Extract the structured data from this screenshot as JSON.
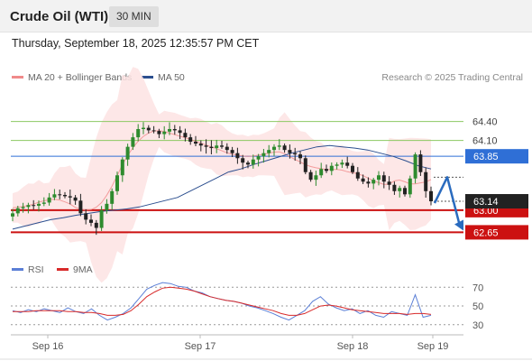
{
  "header": {
    "title": "Crude Oil (WTI)",
    "timeframe": "30 MIN"
  },
  "datetime": "Thursday, September 18, 2025 12:35:57 PM CET",
  "legend": {
    "ma20_label": "MA 20 + Bollinger Bands",
    "ma20_color": "#f08a8a",
    "ma50_label": "MA 50",
    "ma50_color": "#2c4f8f"
  },
  "credit": "Research © 2025 Trading Central",
  "rsi_legend": {
    "rsi_label": "RSI",
    "rsi_color": "#5b7fd6",
    "ma_label": "9MA",
    "ma_color": "#d82a2a"
  },
  "colors": {
    "up_candle": "#2e8b2e",
    "down_candle": "#222222",
    "resistance_green": "#8cc862",
    "pivot_blue": "#2f6fd6",
    "support_red": "#cc1111",
    "bollinger_fill": "#fde3e3",
    "last_price_tag": "#222222",
    "arrow": "#2a6bbf"
  },
  "chart_data": [
    {
      "type": "candlestick",
      "title": "Crude Oil (WTI)",
      "timeframe": "30 MIN",
      "x_tick_labels": [
        "Sep 16",
        "Sep 17",
        "Sep 18",
        "Sep 19"
      ],
      "ylim": [
        62.3,
        64.75
      ],
      "last_price": 63.14,
      "levels": [
        {
          "value": 64.4,
          "label": "64.40",
          "kind": "resistance"
        },
        {
          "value": 64.1,
          "label": "64.10",
          "kind": "resistance"
        },
        {
          "value": 63.85,
          "label": "63.85",
          "kind": "pivot"
        },
        {
          "value": 63.0,
          "label": "63.00",
          "kind": "support"
        },
        {
          "value": 62.65,
          "label": "62.65",
          "kind": "support"
        }
      ],
      "last_price_label": "63.14",
      "close_path": [
        62.95,
        63.03,
        63.05,
        63.08,
        63.07,
        63.1,
        63.12,
        63.2,
        63.25,
        63.24,
        63.22,
        63.2,
        63.15,
        62.95,
        62.85,
        62.8,
        62.72,
        63.0,
        63.1,
        63.3,
        63.55,
        63.8,
        64.0,
        64.15,
        64.28,
        64.3,
        64.26,
        64.25,
        64.2,
        64.24,
        64.28,
        64.26,
        64.22,
        64.15,
        64.08,
        64.05,
        64.02,
        64.0,
        63.98,
        64.02,
        64.0,
        63.95,
        63.9,
        63.82,
        63.75,
        63.72,
        63.8,
        63.85,
        63.9,
        63.95,
        64.0,
        64.02,
        63.95,
        63.9,
        63.88,
        63.82,
        63.6,
        63.48,
        63.55,
        63.65,
        63.62,
        63.7,
        63.72,
        63.75,
        63.7,
        63.6,
        63.5,
        63.45,
        63.42,
        63.48,
        63.55,
        63.45,
        63.4,
        63.3,
        63.35,
        63.25,
        63.5,
        63.88,
        63.6,
        63.3,
        63.14
      ],
      "series": [
        {
          "name": "MA 50",
          "values": [
            62.7,
            62.75,
            62.8,
            62.85,
            62.88,
            62.92,
            62.95,
            62.98,
            63.0,
            63.02,
            63.05,
            63.1,
            63.15,
            63.2,
            63.3,
            63.4,
            63.5,
            63.6,
            63.65,
            63.72,
            63.78,
            63.84,
            63.9,
            63.95,
            64.0,
            64.02,
            64.0,
            63.98,
            63.95,
            63.9,
            63.85,
            63.78,
            63.7,
            63.65
          ]
        }
      ]
    },
    {
      "type": "line",
      "title": "RSI",
      "yticks": [
        30,
        50,
        70
      ],
      "ylim": [
        25,
        78
      ],
      "series": [
        {
          "name": "RSI",
          "values": [
            45,
            43,
            46,
            44,
            47,
            45,
            43,
            48,
            44,
            42,
            47,
            40,
            35,
            38,
            42,
            48,
            58,
            68,
            72,
            75,
            74,
            71,
            70,
            66,
            64,
            60,
            58,
            56,
            55,
            53,
            50,
            48,
            45,
            42,
            38,
            35,
            40,
            45,
            55,
            60,
            52,
            48,
            45,
            47,
            42,
            45,
            40,
            38,
            44,
            42,
            40,
            62,
            38,
            40
          ]
        },
        {
          "name": "9MA",
          "values": [
            44,
            44,
            44,
            45,
            45,
            45,
            45,
            44,
            44,
            43,
            43,
            42,
            40,
            40,
            41,
            45,
            52,
            60,
            65,
            69,
            70,
            69,
            68,
            66,
            63,
            60,
            58,
            56,
            55,
            53,
            51,
            49,
            47,
            45,
            42,
            40,
            40,
            42,
            46,
            50,
            51,
            50,
            48,
            46,
            45,
            44,
            43,
            42,
            42,
            42,
            41,
            42,
            42,
            41
          ]
        }
      ]
    }
  ]
}
